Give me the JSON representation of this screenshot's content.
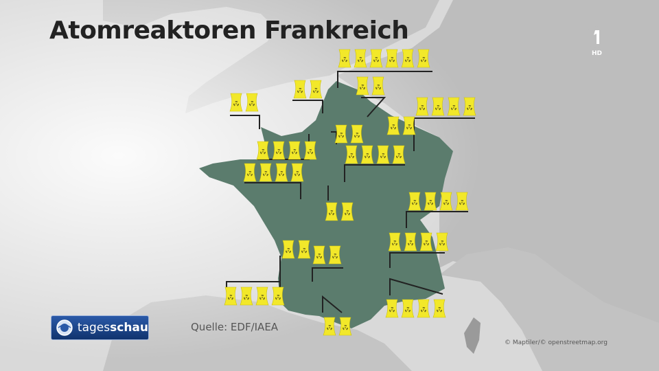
{
  "title": "Atomreaktoren Frankreich",
  "source": "Quelle: EDF/IAEA",
  "map_credit": "© Maptiler/© openstreetmap.org",
  "broadcaster_logo": {
    "brand_regular": "tages",
    "brand_bold": "schau",
    "icon": "tagesschau-globe-icon"
  },
  "channel_logo": {
    "icon": "ard-one-logo",
    "badge": "HD"
  },
  "colors": {
    "france": "#5c7d6e",
    "reactor": "#f2e82a",
    "leader": "#222222",
    "land": "#c4c4c4",
    "sea": "#d8d8d8"
  },
  "reactor_groups": [
    {
      "reactors": 6
    },
    {
      "reactors": 2
    },
    {
      "reactors": 2
    },
    {
      "reactors": 2
    },
    {
      "reactors": 4
    },
    {
      "reactors": 2
    },
    {
      "reactors": 2
    },
    {
      "reactors": 4
    },
    {
      "reactors": 4
    },
    {
      "reactors": 4
    },
    {
      "reactors": 2
    },
    {
      "reactors": 4
    },
    {
      "reactors": 2
    },
    {
      "reactors": 4
    },
    {
      "reactors": 2
    },
    {
      "reactors": 4
    },
    {
      "reactors": 4
    },
    {
      "reactors": 2
    }
  ]
}
